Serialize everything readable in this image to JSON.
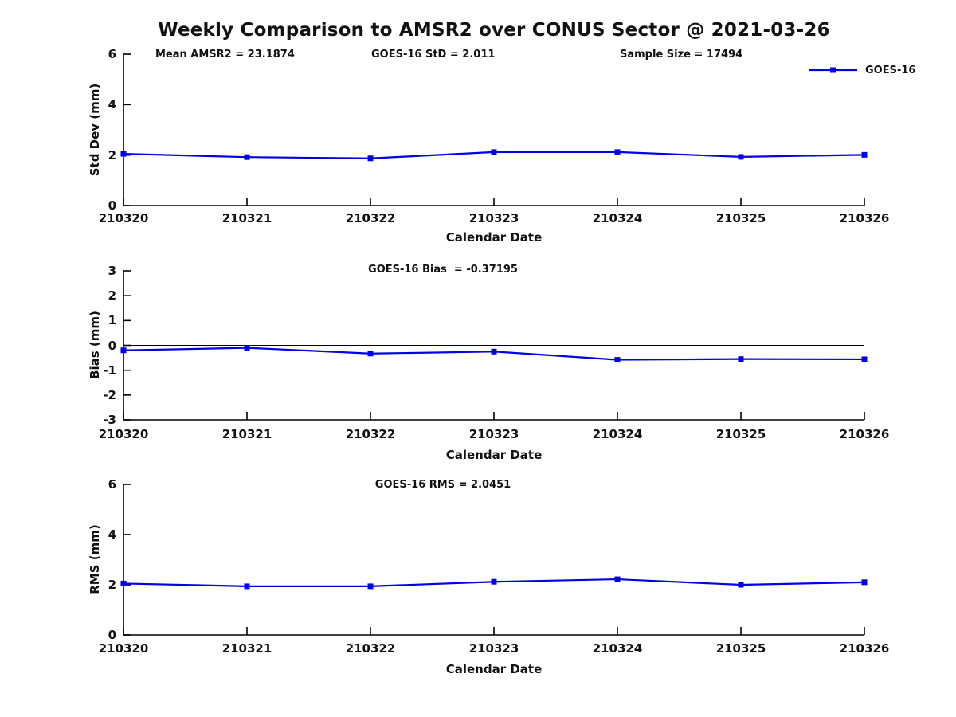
{
  "title": "Weekly Comparison to AMSR2 over CONUS Sector @ 2021-03-26",
  "colors": {
    "series": "#0000e0",
    "axis": "#000000",
    "text": "#111111"
  },
  "chart_data": [
    {
      "type": "line",
      "name": "std-dev",
      "annotations": [
        "Mean AMSR2 = 23.1874",
        "GOES-16 StD = 2.011",
        "Sample Size = 17494"
      ],
      "xlabel": "Calendar Date",
      "ylabel": "Std Dev (mm)",
      "categories": [
        "210320",
        "210321",
        "210322",
        "210323",
        "210324",
        "210325",
        "210326"
      ],
      "yticks": [
        0,
        2,
        4,
        6
      ],
      "ylim": [
        0,
        6
      ],
      "grid": false,
      "legend": {
        "label": "GOES-16",
        "position": "top-right"
      },
      "marker": "square",
      "series": [
        {
          "name": "GOES-16",
          "values": [
            2.05,
            1.92,
            1.87,
            2.12,
            2.12,
            1.93,
            2.01
          ]
        }
      ]
    },
    {
      "type": "line",
      "name": "bias",
      "title": "GOES-16 Bias  = -0.37195",
      "xlabel": "Calendar Date",
      "ylabel": "Bias (mm)",
      "categories": [
        "210320",
        "210321",
        "210322",
        "210323",
        "210324",
        "210325",
        "210326"
      ],
      "yticks": [
        -3,
        -2,
        -1,
        0,
        1,
        2,
        3
      ],
      "ylim": [
        -3,
        3
      ],
      "grid": false,
      "zero_line": true,
      "marker": "square",
      "series": [
        {
          "name": "GOES-16",
          "values": [
            -0.2,
            -0.1,
            -0.33,
            -0.25,
            -0.58,
            -0.55,
            -0.56
          ]
        }
      ]
    },
    {
      "type": "line",
      "name": "rms",
      "title": "GOES-16 RMS = 2.0451",
      "xlabel": "Calendar Date",
      "ylabel": "RMS (mm)",
      "categories": [
        "210320",
        "210321",
        "210322",
        "210323",
        "210324",
        "210325",
        "210326"
      ],
      "yticks": [
        0,
        2,
        4,
        6
      ],
      "ylim": [
        0,
        6
      ],
      "grid": false,
      "marker": "square",
      "series": [
        {
          "name": "GOES-16",
          "values": [
            2.05,
            1.94,
            1.94,
            2.12,
            2.22,
            2.0,
            2.1
          ]
        }
      ]
    }
  ]
}
